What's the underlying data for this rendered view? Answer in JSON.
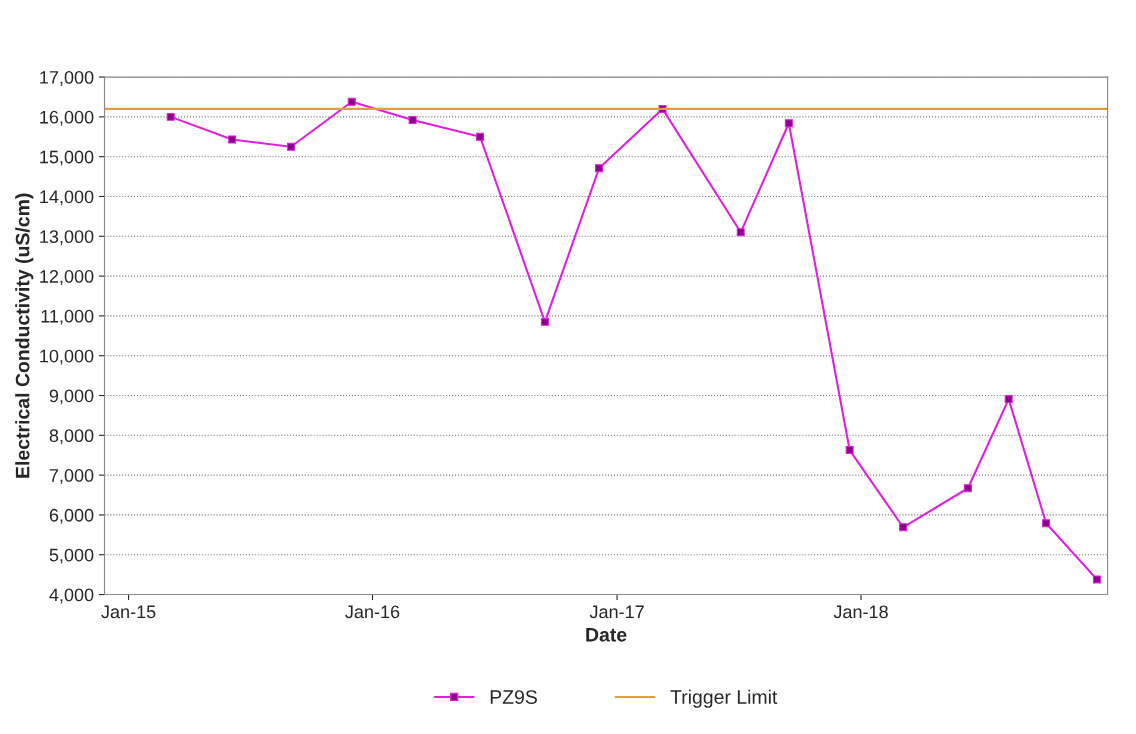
{
  "chart_data": {
    "type": "line",
    "xlabel": "Date",
    "ylabel": "Electrical Conductivity (uS/cm)",
    "x": [
      "2015-03-05",
      "2015-06-05",
      "2015-09-01",
      "2015-12-01",
      "2016-03-01",
      "2016-06-10",
      "2016-09-15",
      "2016-12-05",
      "2017-03-10",
      "2017-07-05",
      "2017-09-15",
      "2017-12-15",
      "2018-03-05",
      "2018-06-10",
      "2018-08-10",
      "2018-10-05",
      "2018-12-20"
    ],
    "series": [
      {
        "name": "PZ9S",
        "color": "#e020e0",
        "values": [
          16000,
          15430,
          15250,
          16380,
          15920,
          15500,
          10850,
          14710,
          16200,
          13100,
          15840,
          7630,
          5690,
          6670,
          8910,
          5790,
          4380
        ]
      }
    ],
    "ref_lines": [
      {
        "axis": "y",
        "value": 16200,
        "label": "Trigger Limit",
        "color": "#e0a040",
        "line_style": "solid"
      }
    ],
    "xlim": [
      "2014-11-26",
      "2019-01-05"
    ],
    "xticks": [
      {
        "value": "2015-01-01",
        "label": "Jan-15"
      },
      {
        "value": "2016-01-01",
        "label": "Jan-16"
      },
      {
        "value": "2017-01-01",
        "label": "Jan-17"
      },
      {
        "value": "2018-01-01",
        "label": "Jan-18"
      }
    ],
    "ylim": [
      4000,
      17000
    ],
    "yticks": [
      {
        "value": 4000,
        "label": "4,000"
      },
      {
        "value": 5000,
        "label": "5,000"
      },
      {
        "value": 6000,
        "label": "6,000"
      },
      {
        "value": 7000,
        "label": "7,000"
      },
      {
        "value": 8000,
        "label": "8,000"
      },
      {
        "value": 9000,
        "label": "9,000"
      },
      {
        "value": 10000,
        "label": "10,000"
      },
      {
        "value": 11000,
        "label": "11,000"
      },
      {
        "value": 12000,
        "label": "12,000"
      },
      {
        "value": 13000,
        "label": "13,000"
      },
      {
        "value": 14000,
        "label": "14,000"
      },
      {
        "value": 15000,
        "label": "15,000"
      },
      {
        "value": 16000,
        "label": "16,000"
      },
      {
        "value": 17000,
        "label": "17,000"
      }
    ],
    "grid": "y",
    "legend": "bottom",
    "marker": "square",
    "line_style": "solid"
  }
}
